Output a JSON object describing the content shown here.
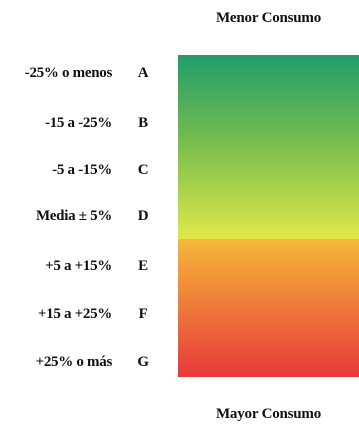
{
  "header": {
    "top_label": "Menor Consumo"
  },
  "footer": {
    "bottom_label": "Mayor Consumo"
  },
  "ratings": [
    {
      "range": "-25% o menos",
      "letter": "A"
    },
    {
      "range": "-15 a -25%",
      "letter": "B"
    },
    {
      "range": "-5 a -15%",
      "letter": "C"
    },
    {
      "range": "Media ± 5%",
      "letter": "D"
    },
    {
      "range": "+5 a +15%",
      "letter": "E"
    },
    {
      "range": "+15 a +25%",
      "letter": "F"
    },
    {
      "range": "+25% o más",
      "letter": "G"
    }
  ],
  "colors": {
    "top_green": "#1f9e6a",
    "upper_mid_green": "#7cbf4c",
    "upper_bottom_yellow": "#e0e84a",
    "lower_top_orange": "#f6b83a",
    "lower_bottom_red": "#e8393a"
  }
}
